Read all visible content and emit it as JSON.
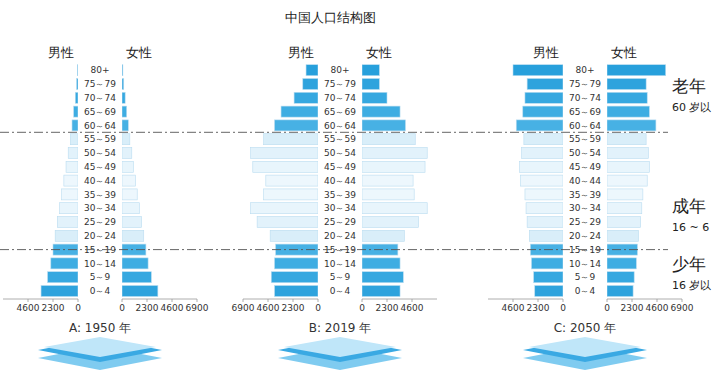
{
  "title": "中国人口结构图",
  "annotations": [
    {
      "text": "老年",
      "subtext": "60 岁以"
    },
    {
      "text": "成年",
      "subtext": "16 ~ 6"
    },
    {
      "text": "少年",
      "subtext": "16 岁以"
    }
  ],
  "chart_data": [
    {
      "type": "bar",
      "orientation": "horizontal",
      "title": "A: 1950 年",
      "categories": [
        "0～4",
        "5～9",
        "10～14",
        "15～19",
        "20～24",
        "25～29",
        "30～34",
        "35～39",
        "40～44",
        "45～49",
        "50～54",
        "55～59",
        "60～64",
        "65～69",
        "70～74",
        "75～79",
        "80+"
      ],
      "colors": [
        "#2ea3dd",
        "#36a8e0",
        "#3eade2",
        "#47b1e4",
        "#d9eef9",
        "#e2f2fb",
        "#e8f5fc",
        "#edf7fd",
        "#edf7fd",
        "#e8f5fc",
        "#e2f2fb",
        "#d9eef9",
        "#47b1e4",
        "#3eade2",
        "#36a8e0",
        "#2ea3dd",
        "#27a0dc"
      ],
      "xlim": [
        0,
        6900
      ],
      "series": [
        {
          "name": "男性",
          "xticks": [
            0,
            2300,
            4600
          ],
          "values": [
            3400,
            2800,
            2500,
            2300,
            2100,
            1900,
            1700,
            1500,
            1300,
            1100,
            900,
            700,
            550,
            400,
            250,
            130,
            60
          ]
        },
        {
          "name": "女性",
          "xticks": [
            0,
            2300,
            4600,
            6900
          ],
          "values": [
            3300,
            2700,
            2400,
            2200,
            2000,
            1800,
            1600,
            1400,
            1250,
            1050,
            900,
            720,
            580,
            430,
            290,
            160,
            80
          ]
        }
      ]
    },
    {
      "type": "bar",
      "orientation": "horizontal",
      "title": "B: 2019 年",
      "categories": [
        "0～4",
        "5～9",
        "10～14",
        "15～19",
        "20～24",
        "25～29",
        "30～34",
        "35～39",
        "40～44",
        "45～49",
        "50～54",
        "55～59",
        "60～64",
        "65～69",
        "70～74",
        "75～79",
        "80+"
      ],
      "colors": [
        "#2ea3dd",
        "#36a8e0",
        "#3eade2",
        "#47b1e4",
        "#d9eef9",
        "#e2f2fb",
        "#e8f5fc",
        "#edf7fd",
        "#edf7fd",
        "#e8f5fc",
        "#e2f2fb",
        "#d9eef9",
        "#47b1e4",
        "#3eade2",
        "#36a8e0",
        "#2ea3dd",
        "#27a0dc"
      ],
      "xlim": [
        0,
        6900
      ],
      "series": [
        {
          "name": "男性",
          "xticks": [
            0,
            2300,
            4600,
            6900
          ],
          "values": [
            4000,
            4300,
            4000,
            3900,
            4400,
            5600,
            6200,
            5000,
            4800,
            6000,
            6200,
            5000,
            4000,
            3400,
            2200,
            1400,
            1100
          ]
        },
        {
          "name": "女性",
          "xticks": [
            0,
            2300,
            4600
          ],
          "values": [
            3500,
            3800,
            3500,
            3300,
            3900,
            5200,
            6000,
            4800,
            4700,
            5800,
            6000,
            4900,
            4000,
            3500,
            2300,
            1600,
            1600
          ]
        }
      ]
    },
    {
      "type": "bar",
      "orientation": "horizontal",
      "title": "C: 2050 年",
      "categories": [
        "0～4",
        "5～9",
        "10～14",
        "15～19",
        "20～24",
        "25～29",
        "30～34",
        "35～39",
        "40～44",
        "45～49",
        "50～54",
        "55～59",
        "60～64",
        "65～69",
        "70～74",
        "75～79",
        "80+"
      ],
      "colors": [
        "#2ea3dd",
        "#36a8e0",
        "#3eade2",
        "#47b1e4",
        "#d9eef9",
        "#e2f2fb",
        "#e8f5fc",
        "#edf7fd",
        "#edf7fd",
        "#e8f5fc",
        "#e2f2fb",
        "#d9eef9",
        "#47b1e4",
        "#3eade2",
        "#36a8e0",
        "#2ea3dd",
        "#27a0dc"
      ],
      "xlim": [
        0,
        6900
      ],
      "series": [
        {
          "name": "男性",
          "xticks": [
            0,
            2300,
            4600
          ],
          "values": [
            2600,
            2700,
            2900,
            3000,
            3100,
            3300,
            3400,
            3500,
            3900,
            4000,
            3800,
            3600,
            4300,
            3700,
            3500,
            3300,
            4600
          ]
        },
        {
          "name": "女性",
          "xticks": [
            0,
            2300,
            4600,
            6900
          ],
          "values": [
            2400,
            2500,
            2700,
            2800,
            2900,
            3100,
            3200,
            3300,
            3700,
            3900,
            3800,
            3600,
            4500,
            3900,
            3700,
            3600,
            5400
          ]
        }
      ]
    }
  ]
}
